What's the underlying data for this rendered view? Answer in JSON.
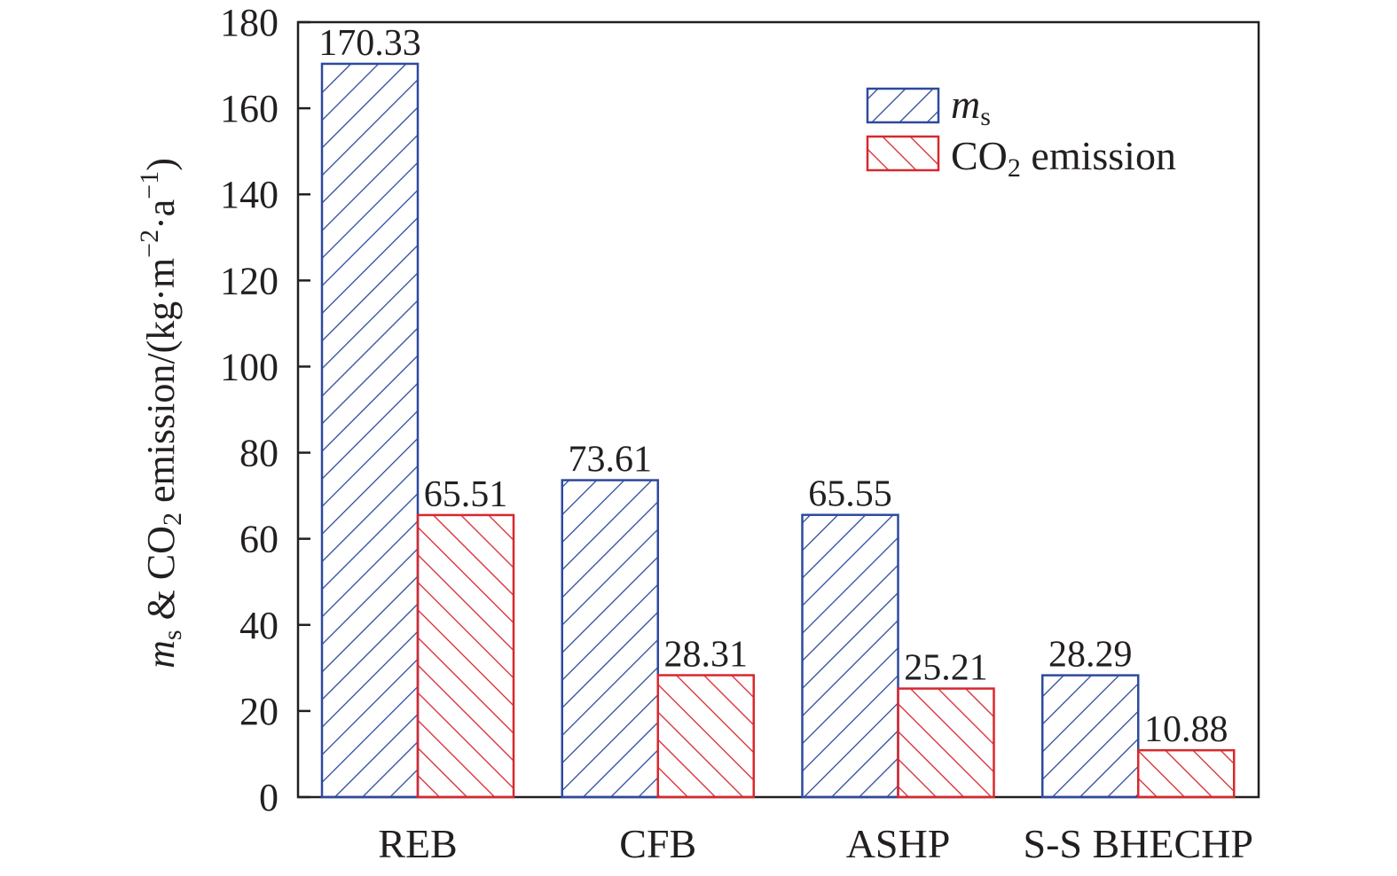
{
  "chart_data": {
    "type": "bar",
    "categories": [
      "REB",
      "CFB",
      "ASHP",
      "S-S BHECHP"
    ],
    "series": [
      {
        "name_main": "m",
        "name_sub": "s",
        "color": "#2e4a9e",
        "hatch": "forward",
        "values": [
          170.33,
          73.61,
          65.55,
          28.29
        ],
        "labels": [
          "170.33",
          "73.61",
          "65.55",
          "28.29"
        ]
      },
      {
        "name_main": "CO",
        "name_sub": "2",
        "name_rest": " emission",
        "color": "#d7282f",
        "hatch": "backward",
        "values": [
          65.51,
          28.31,
          25.21,
          10.88
        ],
        "labels": [
          "65.51",
          "28.31",
          "25.21",
          "10.88"
        ]
      }
    ],
    "ylim": [
      0,
      180
    ],
    "yticks": [
      0,
      20,
      40,
      60,
      80,
      100,
      120,
      140,
      160,
      180
    ],
    "ylabel": {
      "m": "m",
      "s": "s",
      "amp_co": " & CO",
      "two": "2",
      "emission": " emission/(kg·m",
      "minus2": "−2",
      "a": "·a",
      "minus1": "−1",
      "close": ")"
    },
    "xlabel": "",
    "grid": false,
    "legend_position": "top-right"
  }
}
